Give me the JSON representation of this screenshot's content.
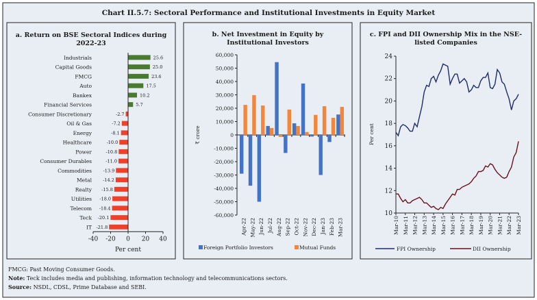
{
  "title": "Chart II.5.7: Sectoral Performance and Institutional Investments in Equity Market",
  "footer": {
    "line1": "FMCG: Past Moving Consumer Goods.",
    "note_label": "Note:",
    "note_text": " Teck includes media and publishing, information technology and telecommunications sectors.",
    "source_label": "Source:",
    "source_text": " NSDL, CDSL, Prime Database and SEBI."
  },
  "colors": {
    "bg": "#e9eef4",
    "green": "#4a7a30",
    "red": "#f0402a",
    "blue": "#4472c4",
    "orange": "#f4863c",
    "navy": "#1f2a6b",
    "maroon": "#6b0f1a"
  },
  "chart_data": [
    {
      "type": "bar",
      "orientation": "horizontal",
      "title_line1": "a. Return on BSE Sectoral Indices  during",
      "title_line2": "2022-23",
      "xlabel": "Per cent",
      "xlim": [
        -40,
        40
      ],
      "xticks": [
        "-40",
        "-20",
        "0",
        "20",
        "40"
      ],
      "categories": [
        "Industrials",
        "Capital Goods",
        "FMCG",
        "Auto",
        "Bankex",
        "Financial Services",
        "Consumer Discretionary",
        "Oil & Gas",
        "Energy",
        "Healthcare",
        "Power",
        "Consumer Durables",
        "Commodities",
        "Metal",
        "Realty",
        "Utilities",
        "Telecom",
        "Teck",
        "IT"
      ],
      "values": [
        25.6,
        25.0,
        23.6,
        17.5,
        10.2,
        5.7,
        -2.7,
        -7.2,
        -8.1,
        -10.0,
        -10.8,
        -11.0,
        -13.9,
        -14.2,
        -15.8,
        -18.0,
        -18.4,
        -20.1,
        -21.8
      ],
      "labels": [
        "25.6",
        "25.0",
        "23.6",
        "17.5",
        "10.2",
        "5.7",
        "-2.7",
        "-7.2",
        "-8.1",
        "-10.0",
        "-10.8",
        "-11.0",
        "-13.9",
        "-14.2",
        "-15.8",
        "-18.0",
        "-18.4",
        "-20.1",
        "-21.8"
      ]
    },
    {
      "type": "bar",
      "title_line1": "b. Net Investment in Equity by",
      "title_line2": "Institutional Investors",
      "ylabel": "₹ crore",
      "ylim": [
        -60000,
        60000
      ],
      "yticks": [
        "-60,000",
        "-50,000",
        "-40,000",
        "-30,000",
        "-20,000",
        "-10,000",
        "0",
        "10,000",
        "20,000",
        "30,000",
        "40,000",
        "50,000",
        "60,000"
      ],
      "categories": [
        "Apr-22",
        "May-22",
        "Jun-22",
        "Jul-22",
        "Aug-22",
        "Sep-22",
        "Oct-22",
        "Nov-22",
        "Dec-22",
        "Jan-23",
        "Feb-23",
        "Mar-23"
      ],
      "series": [
        {
          "name": "Foreign Portfolio Investors",
          "values": [
            -29000,
            -38000,
            -50000,
            6700,
            54500,
            -13500,
            8700,
            38500,
            -1200,
            -30000,
            -5300,
            15300
          ]
        },
        {
          "name": "Mutual Funds",
          "values": [
            22500,
            29800,
            22000,
            5200,
            -1500,
            19000,
            6700,
            2200,
            15000,
            21500,
            12800,
            21000
          ]
        }
      ],
      "legend": "bottom"
    },
    {
      "type": "line",
      "title_line1": "c. FPI and  DII Ownership Mix in the  NSE-",
      "title_line2": "listed Companies",
      "ylabel": "Per cent",
      "ylim": [
        10,
        24
      ],
      "yticks": [
        "10",
        "12",
        "14",
        "16",
        "18",
        "20",
        "22",
        "24"
      ],
      "xticks": [
        "Mar-10",
        "Mar-11",
        "Mar-12",
        "Mar-13",
        "Mar-14",
        "Mar-15",
        "Mar-16",
        "Mar-17",
        "Mar-18",
        "Mar-19",
        "Mar-20",
        "Mar-21",
        "Mar-22",
        "Mar-23"
      ],
      "frequency": "quarterly, Mar-10 to Mar-23",
      "series": [
        {
          "name": "FPI Ownership",
          "values": [
            17.2,
            16.9,
            17.7,
            17.9,
            17.8,
            17.6,
            17.3,
            17.3,
            18.0,
            17.7,
            18.6,
            19.5,
            20.8,
            21.4,
            21.3,
            22.0,
            22.2,
            21.7,
            22.3,
            22.7,
            23.3,
            23.2,
            23.1,
            21.5,
            22.0,
            22.4,
            22.4,
            21.6,
            21.8,
            22.0,
            21.7,
            20.8,
            21.0,
            21.4,
            21.2,
            21.2,
            21.8,
            22.1,
            22.1,
            22.5,
            21.2,
            21.1,
            21.5,
            22.8,
            22.5,
            21.7,
            21.5,
            20.8,
            20.2,
            19.2,
            20.0,
            20.2,
            20.6
          ]
        },
        {
          "name": "DII Ownership",
          "values": [
            11.7,
            11.7,
            11.3,
            11.0,
            11.2,
            10.9,
            10.9,
            11.1,
            11.2,
            11.3,
            11.4,
            11.2,
            10.9,
            10.9,
            10.7,
            10.5,
            10.6,
            10.4,
            10.3,
            10.5,
            10.4,
            10.8,
            11.1,
            11.4,
            11.7,
            11.6,
            12.1,
            12.1,
            12.3,
            12.4,
            12.5,
            12.6,
            12.8,
            13.1,
            13.3,
            13.7,
            13.7,
            13.8,
            14.2,
            14.1,
            14.4,
            14.3,
            13.9,
            13.6,
            13.4,
            13.2,
            13.1,
            13.2,
            13.7,
            14.1,
            15.0,
            15.4,
            16.4
          ]
        }
      ],
      "legend": "bottom"
    }
  ]
}
